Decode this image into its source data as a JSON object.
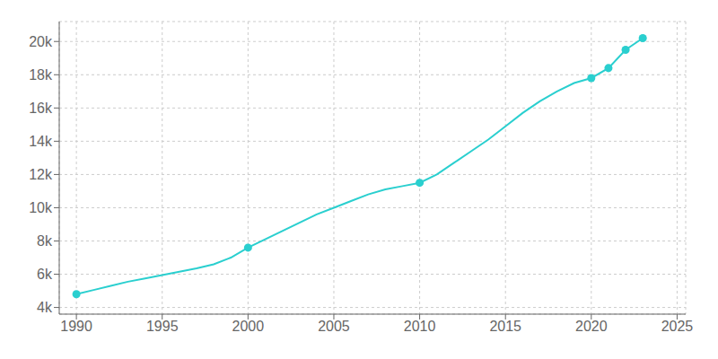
{
  "chart_data": {
    "type": "line",
    "xlim": [
      1989,
      2025.5
    ],
    "ylim": [
      3600,
      21200
    ],
    "xticks": [
      1990,
      1995,
      2000,
      2005,
      2010,
      2015,
      2020,
      2025
    ],
    "yticks": [
      {
        "value": 4000,
        "label": "4k"
      },
      {
        "value": 6000,
        "label": "6k"
      },
      {
        "value": 8000,
        "label": "8k"
      },
      {
        "value": 10000,
        "label": "10k"
      },
      {
        "value": 12000,
        "label": "12k"
      },
      {
        "value": 14000,
        "label": "14k"
      },
      {
        "value": 16000,
        "label": "16k"
      },
      {
        "value": 18000,
        "label": "18k"
      },
      {
        "value": 20000,
        "label": "20k"
      }
    ],
    "grid": true,
    "series": [
      {
        "type": "line",
        "color": "#2acfcf",
        "x": [
          1990,
          1991,
          1992,
          1993,
          1994,
          1995,
          1996,
          1997,
          1998,
          1999,
          2000,
          2001,
          2002,
          2003,
          2004,
          2005,
          2006,
          2007,
          2008,
          2009,
          2010,
          2011,
          2012,
          2013,
          2014,
          2015,
          2016,
          2017,
          2018,
          2019,
          2020,
          2021,
          2022,
          2023
        ],
        "values": [
          4800,
          5050,
          5300,
          5550,
          5750,
          5950,
          6150,
          6350,
          6600,
          7000,
          7600,
          8100,
          8600,
          9100,
          9600,
          10000,
          10400,
          10800,
          11100,
          11300,
          11500,
          12000,
          12700,
          13400,
          14100,
          14900,
          15700,
          16400,
          17000,
          17500,
          17800,
          18400,
          19500,
          20200
        ]
      },
      {
        "type": "scatter",
        "marker": "circle",
        "color": "#2acfcf",
        "x": [
          1990,
          2000,
          2010,
          2020,
          2021,
          2022,
          2023
        ],
        "values": [
          4800,
          7600,
          11500,
          17800,
          18400,
          19500,
          20200
        ]
      }
    ]
  }
}
